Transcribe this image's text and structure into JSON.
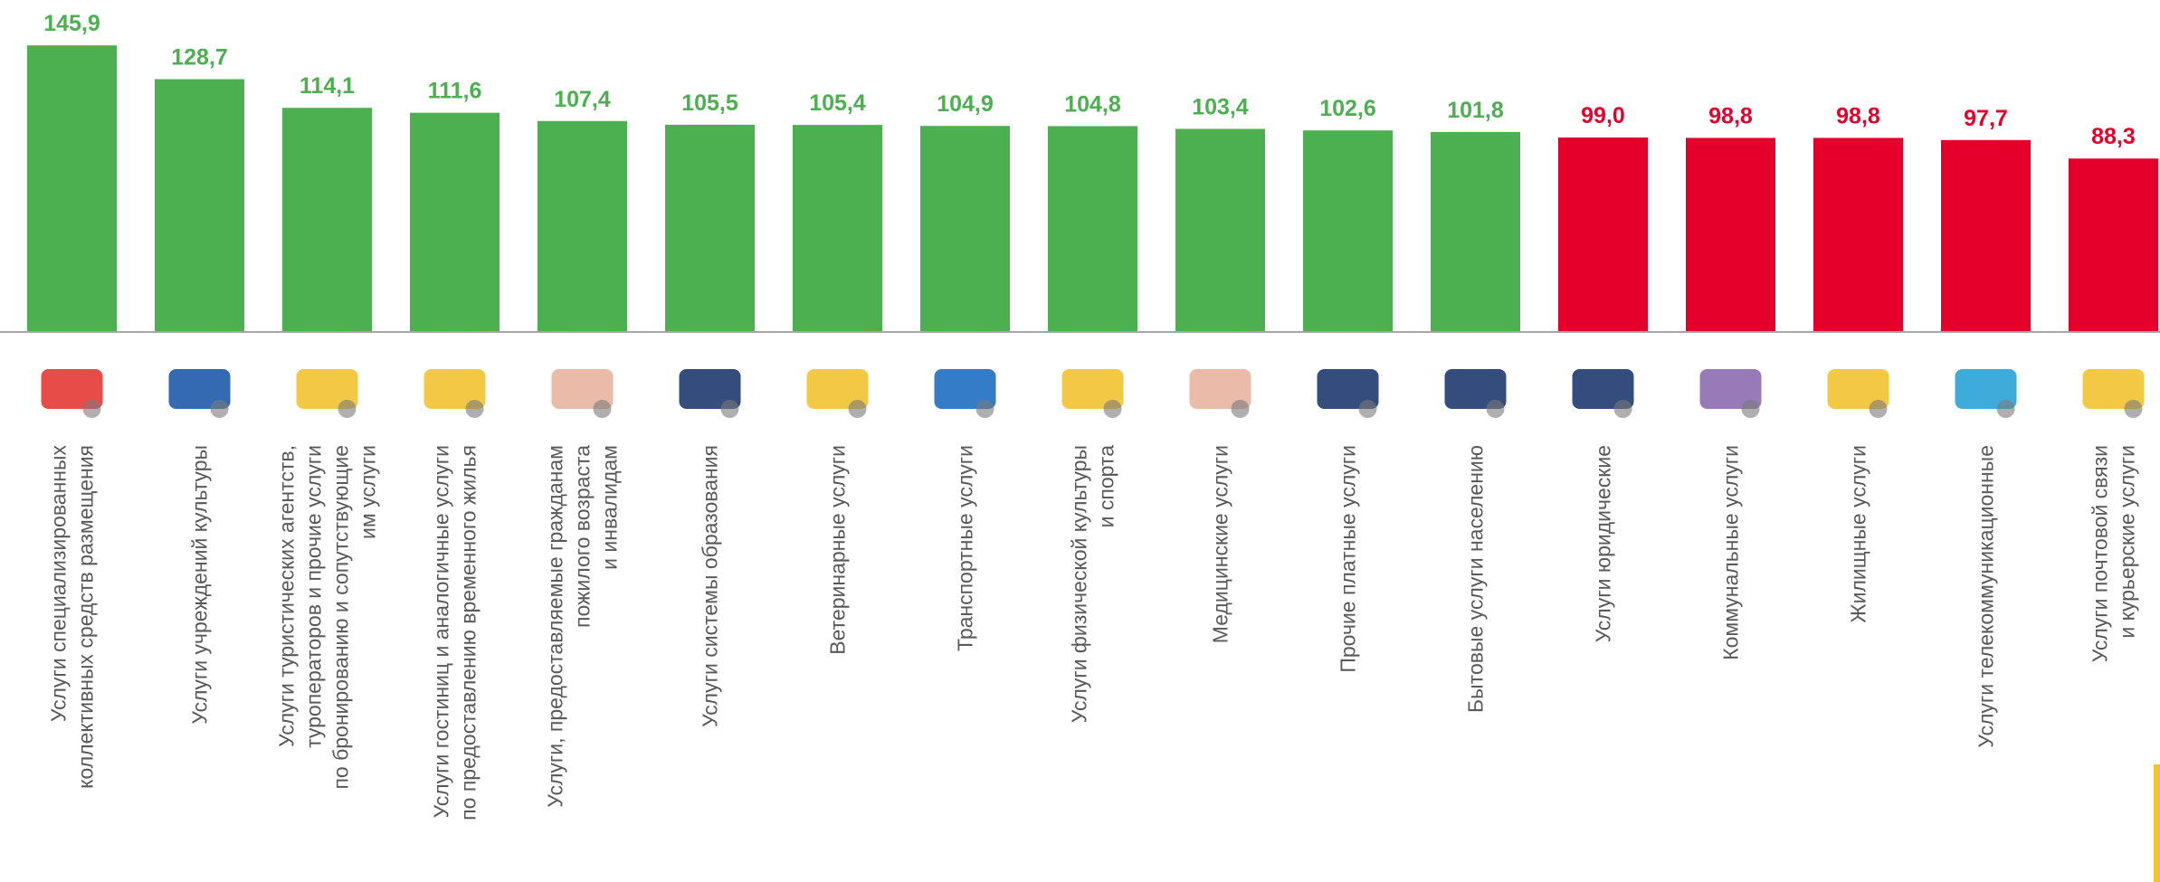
{
  "chart_data": {
    "type": "bar",
    "categories": [
      "Услуги специализированных\nколлективных средств размещения",
      "Услуги учреждений культуры",
      "Услуги туристических агентств,\nтуроператоров и прочие услуги\nпо бронированию и  сопутствующие\nим услуги",
      "Услуги гостиниц и аналогичные услуги\nпо предоставлению временного жилья",
      "Услуги, предоставляемые гражданам\nпожилого возраста\nи инвалидам",
      "Услуги системы образования",
      "Ветеринарные услуги",
      "Транспортные услуги",
      "Услуги физической культуры\nи спорта",
      "Медицинские услуги",
      "Прочие платные услуги",
      "Бытовые услуги населению",
      "Услуги юридические",
      "Коммунальные услуги",
      "Жилищные услуги",
      "Услуги телекоммуникационные",
      "Услуги почтовой связи\nи курьерские услуги"
    ],
    "values": [
      145.9,
      128.7,
      114.1,
      111.6,
      107.4,
      105.5,
      105.4,
      104.9,
      104.8,
      103.4,
      102.6,
      101.8,
      99.0,
      98.8,
      98.8,
      97.7,
      88.3
    ],
    "value_labels": [
      "145,9",
      "128,7",
      "114,1",
      "111,6",
      "107,4",
      "105,5",
      "105,4",
      "104,9",
      "104,8",
      "103,4",
      "102,6",
      "101,8",
      "99,0",
      "98,8",
      "98,8",
      "97,7",
      "88,3"
    ],
    "colors": [
      "#4caf50",
      "#4caf50",
      "#4caf50",
      "#4caf50",
      "#4caf50",
      "#4caf50",
      "#4caf50",
      "#4caf50",
      "#4caf50",
      "#4caf50",
      "#4caf50",
      "#4caf50",
      "#e4002b",
      "#e4002b",
      "#e4002b",
      "#e4002b",
      "#e4002b"
    ],
    "ylim": [
      0,
      169
    ]
  }
}
